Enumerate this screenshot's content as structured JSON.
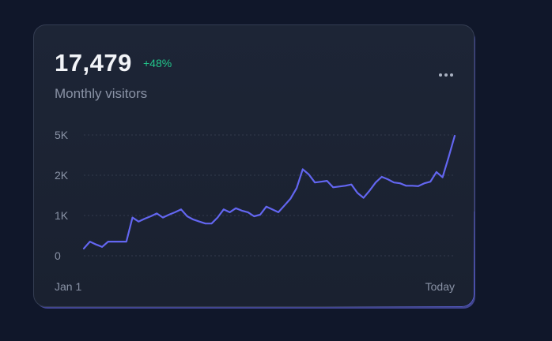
{
  "card": {
    "value": "17,479",
    "change": "+48%",
    "subtitle": "Monthly visitors",
    "more_icon": "more-horizontal-icon"
  },
  "colors": {
    "background": "#10172a",
    "card": "#1d2536",
    "line": "#6366f1",
    "positive": "#22c58b",
    "muted_text": "#8a93a6"
  },
  "chart_data": {
    "type": "line",
    "y_ticks": [
      "0",
      "1K",
      "2K",
      "5K"
    ],
    "x_labels": [
      "Jan 1",
      "Today"
    ],
    "grid": true,
    "series": [
      {
        "values": [
          0.18,
          0.35,
          0.28,
          0.22,
          0.35,
          0.35,
          0.35,
          0.35,
          0.95,
          0.85,
          0.92,
          0.98,
          1.05,
          0.95,
          1.02,
          1.08,
          1.15,
          0.98,
          0.9,
          0.85,
          0.8,
          0.8,
          0.95,
          1.15,
          1.08,
          1.18,
          1.12,
          1.08,
          0.98,
          1.02,
          1.22,
          1.15,
          1.08,
          1.25,
          1.42,
          1.68,
          2.15,
          2.02,
          1.82,
          1.84,
          1.86,
          1.7,
          1.72,
          1.74,
          1.77,
          1.56,
          1.44,
          1.62,
          1.82,
          1.96,
          1.9,
          1.82,
          1.8,
          1.74,
          1.74,
          1.73,
          1.8,
          1.84,
          2.08,
          1.95,
          2.45,
          2.98
        ]
      }
    ]
  }
}
